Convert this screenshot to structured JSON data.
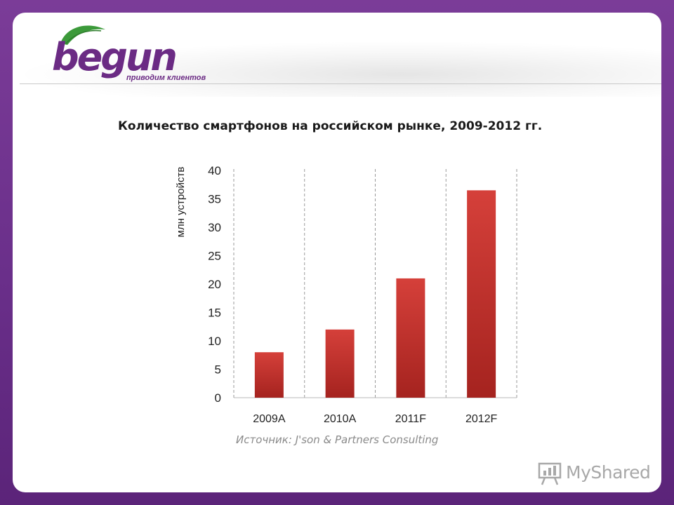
{
  "brand": {
    "name": "begun",
    "tagline": "приводим клиентов",
    "colors": {
      "purple": "#6b2b84",
      "leaf": "#3c9a3a",
      "frame": "#7b3c98"
    }
  },
  "chart_data": {
    "type": "bar",
    "title": "Количество смартфонов на российском рынке, 2009-2012 гг.",
    "ylabel": "млн устройств",
    "xlabel": "",
    "categories": [
      "2009A",
      "2010A",
      "2011F",
      "2012F"
    ],
    "values": [
      8,
      12,
      21,
      36.5
    ],
    "ylim": [
      0,
      40
    ],
    "yticks": [
      0,
      5,
      10,
      15,
      20,
      25,
      30,
      35,
      40
    ],
    "grid": "vertical dashed separators between categories",
    "bar_color": "#c8302e",
    "source": "Источник: J'son & Partners Consulting"
  },
  "watermark": {
    "text": "MyShared",
    "icon": "presentation-board-icon"
  }
}
